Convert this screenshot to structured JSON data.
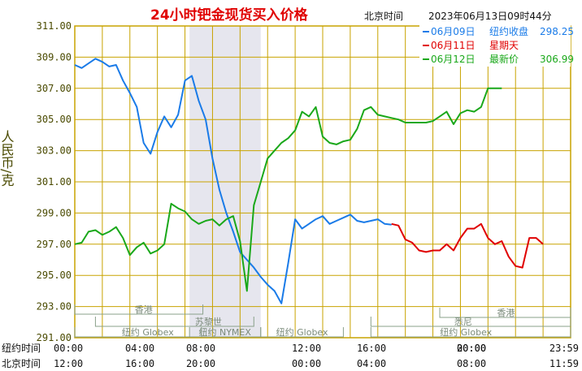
{
  "chart_data": {
    "type": "line",
    "title": "24小时钯金现货买入价格",
    "timezone_label": "北京时间",
    "timestamp": "2023年06月13日09时44分",
    "ylabel": "人民币/克",
    "ylim": [
      291,
      311
    ],
    "yticks": [
      "311.00",
      "309.00",
      "307.00",
      "305.00",
      "303.00",
      "301.00",
      "299.00",
      "297.00",
      "295.00",
      "293.00",
      "291.00"
    ],
    "x_rows": [
      {
        "label": "纽约时间",
        "ticks": [
          "00:00",
          "04:00",
          "08:00",
          "12:00",
          "16:00",
          "20:00",
          "00:00",
          "23:59"
        ]
      },
      {
        "label": "北京时间",
        "ticks": [
          "12:00",
          "16:00",
          "20:00",
          "00:00",
          "04:00",
          "08:00",
          "11:59"
        ]
      }
    ],
    "legend": [
      {
        "label": "06月09日",
        "desc": "纽约收盘",
        "value": "298.25",
        "color": "#1a7be8"
      },
      {
        "label": "06月11日",
        "desc": "星期天",
        "value": "",
        "color": "#e00000"
      },
      {
        "label": "06月12日",
        "desc": "最新价",
        "value": "306.99",
        "color": "#1aa81a"
      }
    ],
    "sessions": {
      "upper": [
        "香港",
        "苏黎世",
        "悉尼",
        "香港"
      ],
      "lower": [
        "纽约 Globex",
        "纽约 NYMEX",
        "纽约 Globex",
        "纽约 Globex"
      ]
    },
    "colors": {
      "grid": "#c8a300",
      "label": "#4a4a00",
      "title": "#e00000",
      "shade": "#e6e6ee"
    },
    "series": [
      {
        "name": "06月09日",
        "color": "#1a7be8",
        "x": [
          0,
          0.5,
          1,
          1.5,
          2,
          2.5,
          3,
          3.5,
          4,
          4.5,
          5,
          5.5,
          6,
          6.5,
          7,
          7.5,
          8,
          8.5,
          9,
          9.5,
          10,
          10.5,
          11,
          11.5,
          12,
          12.5,
          13,
          13.5,
          14,
          14.5,
          15,
          15.5,
          16,
          16.5,
          17,
          17.5,
          18,
          18.5,
          19,
          19.5,
          20,
          20.5,
          21,
          21.5,
          22,
          22.5,
          23
        ],
        "values": [
          308.5,
          308.3,
          308.6,
          308.9,
          308.7,
          308.4,
          308.5,
          307.5,
          306.7,
          305.8,
          303.5,
          302.8,
          304.2,
          305.2,
          304.5,
          305.3,
          307.5,
          307.8,
          306.2,
          305.0,
          302.5,
          300.5,
          299.0,
          297.8,
          296.5,
          296.0,
          295.5,
          294.9,
          294.4,
          294.0,
          293.2,
          295.8,
          298.6,
          298.0,
          298.3,
          298.6,
          298.8,
          298.3,
          298.5,
          298.7,
          298.9,
          298.5,
          298.4,
          298.5,
          298.6,
          298.3,
          298.25
        ]
      },
      {
        "name": "06月11日",
        "color": "#e00000",
        "x": [
          23,
          23.5,
          24,
          24.5,
          25,
          25.5,
          26,
          26.5,
          27,
          27.5,
          28,
          28.5,
          29,
          29.5,
          30,
          30.5,
          31,
          31.5,
          32,
          32.5,
          33,
          33.5,
          34
        ],
        "values": [
          298.3,
          298.2,
          297.3,
          297.1,
          296.6,
          296.5,
          296.6,
          296.6,
          297.0,
          296.6,
          297.4,
          298.0,
          298.0,
          298.3,
          297.4,
          297.0,
          297.2,
          296.2,
          295.6,
          295.5,
          297.4,
          297.4,
          297.0
        ]
      },
      {
        "name": "06月12日",
        "color": "#1aa81a",
        "x": [
          0,
          0.5,
          1,
          1.5,
          2,
          2.5,
          3,
          3.5,
          4,
          4.5,
          5,
          5.5,
          6,
          6.5,
          7,
          7.5,
          8,
          8.5,
          9,
          9.5,
          10,
          10.5,
          11,
          11.5,
          12,
          12.5,
          13,
          13.5,
          14,
          14.5,
          15,
          15.5,
          16,
          16.5,
          17,
          17.5,
          18,
          18.5,
          19,
          19.5,
          20,
          20.5,
          21,
          21.5,
          22,
          22.5,
          23,
          23.5,
          24,
          24.5,
          25,
          25.5,
          26,
          26.5,
          27,
          27.5,
          28,
          28.5,
          29,
          29.5,
          30,
          30.5,
          31
        ],
        "values": [
          297.0,
          297.1,
          297.8,
          297.9,
          297.6,
          297.8,
          298.1,
          297.4,
          296.3,
          296.8,
          297.1,
          296.4,
          296.6,
          297.0,
          299.6,
          299.3,
          299.1,
          298.6,
          298.3,
          298.5,
          298.6,
          298.2,
          298.6,
          298.8,
          297.2,
          294.0,
          299.5,
          301.0,
          302.5,
          303.0,
          303.5,
          303.8,
          304.3,
          305.5,
          305.2,
          305.8,
          303.9,
          303.5,
          303.4,
          303.6,
          303.7,
          304.4,
          305.6,
          305.8,
          305.3,
          305.2,
          305.1,
          305.0,
          304.8,
          304.8,
          304.8,
          304.8,
          304.9,
          305.2,
          305.5,
          304.7,
          305.4,
          305.6,
          305.5,
          305.8,
          307.0,
          307.0,
          307.0
        ]
      }
    ]
  }
}
